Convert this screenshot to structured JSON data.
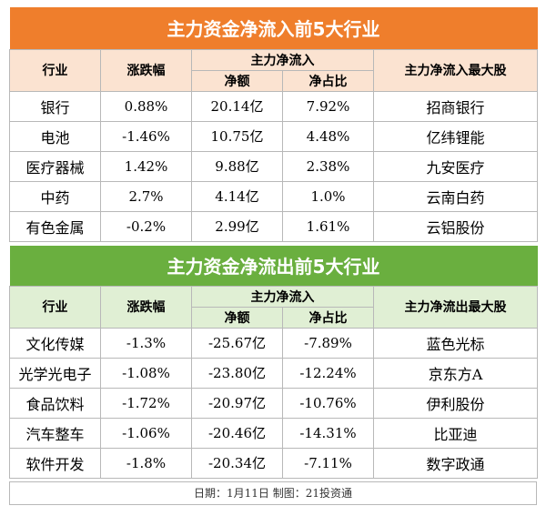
{
  "inflow": {
    "title": "主力资金净流入前5大行业",
    "headers": {
      "industry": "行业",
      "change": "涨跌幅",
      "netflow_group": "主力净流入",
      "net_amount": "净额",
      "net_ratio": "净占比",
      "top_stock": "主力净流入最大股"
    },
    "rows": [
      {
        "industry": "银行",
        "change": "0.88%",
        "net_amount": "20.14亿",
        "net_ratio": "7.92%",
        "top_stock": "招商银行"
      },
      {
        "industry": "电池",
        "change": "-1.46%",
        "net_amount": "10.75亿",
        "net_ratio": "4.48%",
        "top_stock": "亿纬锂能"
      },
      {
        "industry": "医疗器械",
        "change": "1.42%",
        "net_amount": "9.88亿",
        "net_ratio": "2.38%",
        "top_stock": "九安医疗"
      },
      {
        "industry": "中药",
        "change": "2.7%",
        "net_amount": "4.14亿",
        "net_ratio": "1.0%",
        "top_stock": "云南白药"
      },
      {
        "industry": "有色金属",
        "change": "-0.2%",
        "net_amount": "2.99亿",
        "net_ratio": "1.61%",
        "top_stock": "云铝股份"
      }
    ]
  },
  "outflow": {
    "title": "主力资金净流出前5大行业",
    "headers": {
      "industry": "行业",
      "change": "涨跌幅",
      "netflow_group": "主力净流入",
      "net_amount": "净额",
      "net_ratio": "净占比",
      "top_stock": "主力净流出最大股"
    },
    "rows": [
      {
        "industry": "文化传媒",
        "change": "-1.3%",
        "net_amount": "-25.67亿",
        "net_ratio": "-7.89%",
        "top_stock": "蓝色光标"
      },
      {
        "industry": "光学光电子",
        "change": "-1.08%",
        "net_amount": "-23.80亿",
        "net_ratio": "-12.24%",
        "top_stock": "京东方A"
      },
      {
        "industry": "食品饮料",
        "change": "-1.72%",
        "net_amount": "-20.97亿",
        "net_ratio": "-10.76%",
        "top_stock": "伊利股份"
      },
      {
        "industry": "汽车整车",
        "change": "-1.06%",
        "net_amount": "-20.46亿",
        "net_ratio": "-14.31%",
        "top_stock": "比亚迪"
      },
      {
        "industry": "软件开发",
        "change": "-1.8%",
        "net_amount": "-20.34亿",
        "net_ratio": "-7.11%",
        "top_stock": "数字政通"
      }
    ]
  },
  "footer": "日期：1月11日  制图：21投资通"
}
